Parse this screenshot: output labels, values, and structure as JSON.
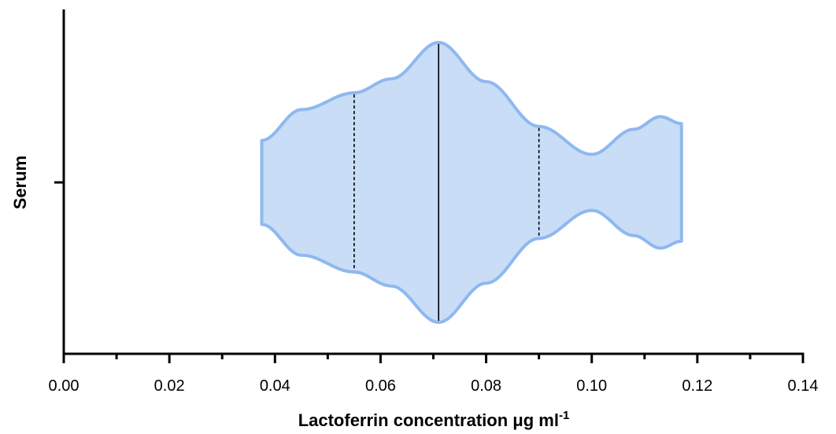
{
  "chart_data": {
    "type": "violin",
    "orientation": "horizontal",
    "category": "Serum",
    "xlabel": "Lactoferrin concentration μg ml",
    "xlabel_superscript": "-1",
    "ylabel": "Serum",
    "xlim": [
      0.0,
      0.14
    ],
    "x_major_ticks": [
      0.0,
      0.02,
      0.04,
      0.06,
      0.08,
      0.1,
      0.12,
      0.14
    ],
    "x_tick_labels": [
      "0.00",
      "0.02",
      "0.04",
      "0.06",
      "0.08",
      "0.10",
      "0.12",
      "0.14"
    ],
    "x_minor_step": 0.01,
    "grid": false,
    "median": 0.071,
    "quartiles": [
      0.055,
      0.09
    ],
    "density_profile": [
      {
        "x": 0.0375,
        "d": 0.3
      },
      {
        "x": 0.045,
        "d": 0.52
      },
      {
        "x": 0.055,
        "d": 0.64
      },
      {
        "x": 0.062,
        "d": 0.74
      },
      {
        "x": 0.071,
        "d": 1.0
      },
      {
        "x": 0.08,
        "d": 0.72
      },
      {
        "x": 0.09,
        "d": 0.4
      },
      {
        "x": 0.1,
        "d": 0.2
      },
      {
        "x": 0.108,
        "d": 0.38
      },
      {
        "x": 0.113,
        "d": 0.47
      },
      {
        "x": 0.117,
        "d": 0.42
      }
    ],
    "colors": {
      "fill": "#c9ddf7",
      "stroke": "#8fb8ef",
      "median": "#000000",
      "quartile": "#000000",
      "axis": "#000000"
    }
  }
}
